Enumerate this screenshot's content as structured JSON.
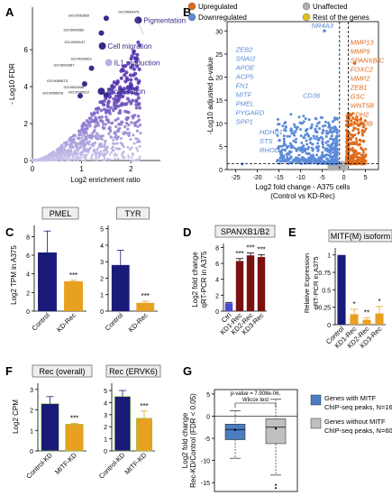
{
  "panels": {
    "A": "A",
    "B": "B",
    "C": "C",
    "D": "D",
    "E": "E",
    "F": "F",
    "G": "G"
  },
  "colors": {
    "navy": "#1a1a7a",
    "orange": "#e8a020",
    "darkred": "#7a1212",
    "blue_point": "#5b8bd9",
    "orange_point": "#e06a1a",
    "grey_point": "#b0b0b0",
    "lavender": "#b7b0e0",
    "purple_dark": "#3a2a8a",
    "g_blue": "#4a7ec0",
    "g_grey": "#c0c0c0"
  },
  "chart_data": [
    {
      "panel": "A",
      "type": "scatter",
      "xlabel": "Log2 enrichment ratio",
      "ylabel": "- Log10 FDR",
      "xticks": [
        "0",
        "1",
        "2"
      ],
      "yticks": [
        "0",
        "2",
        "4",
        "6"
      ],
      "xlim": [
        0,
        2.6
      ],
      "ylim": [
        0,
        8.3
      ],
      "labeled_points": [
        {
          "x": 2.15,
          "y": 7.6,
          "id": "GO:0043473",
          "term": "Pigmentation"
        },
        {
          "x": 1.5,
          "y": 7.7,
          "id": "GO:0031589",
          "term": ""
        },
        {
          "x": 1.4,
          "y": 6.9,
          "id": "GO:0042062",
          "term": ""
        },
        {
          "x": 1.42,
          "y": 6.2,
          "id": "GO:2000147",
          "term": "Cell migration"
        },
        {
          "x": 1.55,
          "y": 5.3,
          "id": "GO:0032623",
          "term": "IL1 production"
        },
        {
          "x": 1.2,
          "y": 5.0,
          "id": "GO:0001667",
          "term": ""
        },
        {
          "x": 1.06,
          "y": 4.15,
          "id": "GO:0050673",
          "term": ""
        },
        {
          "x": 1.4,
          "y": 3.75,
          "id": "GO:0001936",
          "term": "Proliferation"
        },
        {
          "x": 0.97,
          "y": 3.5,
          "id": "GO:0050678",
          "term": ""
        },
        {
          "x": 1.5,
          "y": 3.55,
          "id": "GO:0032612",
          "term": ""
        }
      ]
    },
    {
      "panel": "B",
      "type": "scatter",
      "xlabel": "Log2 fold change - A375 cells",
      "xlabel2": "(Control vs KD-Rec)",
      "ylabel": "-Log10 adjusted p-value",
      "xticks": [
        "-25",
        "-20",
        "-15",
        "-10",
        "-5",
        "0",
        "5"
      ],
      "yticks": [
        "0",
        "5",
        "10",
        "15",
        "20",
        "25",
        "30"
      ],
      "xlim": [
        -27,
        8
      ],
      "ylim": [
        0,
        32
      ],
      "legend": [
        {
          "label": "Upregulated",
          "color": "#e06a1a"
        },
        {
          "label": "Unaffected",
          "color": "#b0b0b0"
        },
        {
          "label": "Downregulated",
          "color": "#5b8bd9"
        },
        {
          "label": "Rest of the genes",
          "color": "#e0c020"
        }
      ],
      "down_genes_a": [
        "ZEB2",
        "SNAI2",
        "APOE",
        "ACP5",
        "FN1",
        "MITF",
        "PMEL",
        "PYGARD",
        "SPP1"
      ],
      "down_genes_b": [
        "HDHD1",
        "STS",
        "RHOD"
      ],
      "cd36": "CD36",
      "nr4a3": "NR4A3",
      "up_genes": [
        "MMP13",
        "MMP9",
        "SPANXB/C",
        "FOXC2",
        "MMP2",
        "ZEB1",
        "GSC",
        "WNT5B",
        "CDH2",
        "GSK3B"
      ]
    },
    {
      "panel": "C",
      "type": "bar",
      "ylabel": "Log2 TPM in A375",
      "subplots": [
        {
          "title": "PMEL",
          "categories": [
            "Control",
            "KD-Rec"
          ],
          "values": [
            6.3,
            3.2
          ],
          "errors": [
            2.3,
            0.1
          ],
          "yticks": [
            "0",
            "2",
            "4",
            "6",
            "8"
          ],
          "ymax": 9.2,
          "sig": "***"
        },
        {
          "title": "TYR",
          "categories": [
            "Control",
            "KD-Rec"
          ],
          "values": [
            2.8,
            0.5
          ],
          "errors": [
            0.9,
            0.1
          ],
          "yticks": [
            "0",
            "1",
            "2",
            "3",
            "4",
            "5"
          ],
          "ymax": 5.2,
          "sig": "***"
        }
      ]
    },
    {
      "panel": "D",
      "type": "bar",
      "title": "SPANXB1/B2",
      "ylabel": "Log2 fold change",
      "ylabel2": "qRT-PCR in A375",
      "categories": [
        "Ctrl",
        "KD1-Rec",
        "KD2-Rec",
        "KD3-Rec"
      ],
      "values": [
        1.0,
        6.3,
        7.0,
        6.8
      ],
      "errors": [
        0.1,
        0.3,
        0.3,
        0.3
      ],
      "sig": [
        "",
        "***",
        "***",
        "***"
      ],
      "yticks": [
        "0",
        "2",
        "4",
        "6",
        "8"
      ],
      "ymax": 8.5
    },
    {
      "panel": "E",
      "type": "bar",
      "title": "MITF(M) isoform",
      "ylabel": "Relative Expression",
      "ylabel2": "qRT-PCR in A375",
      "categories": [
        "Control",
        "KD1-Rec",
        "KD2-Rec",
        "KD3-Rec"
      ],
      "values": [
        1.0,
        0.15,
        0.07,
        0.16
      ],
      "errors": [
        0,
        0.07,
        0.03,
        0.1
      ],
      "sig": [
        "",
        "*",
        "**",
        "*"
      ],
      "yticks": [
        "0",
        "0.25",
        "0.5",
        "0.75",
        "1"
      ],
      "ymax": 1.1
    },
    {
      "panel": "F",
      "type": "bar",
      "ylabel": "Log2 CPM",
      "subplots": [
        {
          "title": "Rec (overall)",
          "categories": [
            "Control-KD",
            "MITF-KD"
          ],
          "values": [
            2.3,
            1.3
          ],
          "errors": [
            0.35,
            0.05
          ],
          "yticks": [
            "0",
            "1",
            "2",
            "3"
          ],
          "ymax": 3.3,
          "sig": "***"
        },
        {
          "title": "Rec (ERVK6)",
          "categories": [
            "Control-KD",
            "MITF-KD"
          ],
          "values": [
            4.5,
            2.7
          ],
          "errors": [
            0.5,
            0.6
          ],
          "yticks": [
            "0",
            "1",
            "2",
            "3",
            "4",
            "5"
          ],
          "ymax": 5.6,
          "sig": "***"
        }
      ]
    },
    {
      "panel": "G",
      "type": "box",
      "ylabel": "Log2 fold change",
      "ylabel2": "Rec-KD/Control (FDR < 0.05)",
      "annotation": "p-value = 7.908e-06,",
      "annotation2": "Wilcox test",
      "yticks": [
        "-15",
        "-10",
        "-5",
        "0",
        "5"
      ],
      "ylim": [
        -17,
        6
      ],
      "boxes": [
        {
          "name": "Genes with MITF ChIP-seq peaks, N=167",
          "q1": -5.3,
          "median": -3.0,
          "q3": -1.8,
          "mean": -3.1,
          "wlow": -9.5,
          "whigh": 1.2,
          "color": "#4a7ec0"
        },
        {
          "name": "Genes without MITF ChIP-seq peaks, N=606",
          "q1": -6.2,
          "median": -2.5,
          "q3": -0.6,
          "mean": -2.8,
          "wlow": -13.3,
          "whigh": 3.8,
          "color": "#c0c0c0"
        }
      ],
      "legend": [
        {
          "line1": "Genes with MITF",
          "line2": "ChIP-seq peaks, N=167",
          "color": "#4a7ec0"
        },
        {
          "line1": "Genes without MITF",
          "line2": "ChIP-seq peaks, N=606",
          "color": "#c0c0c0"
        }
      ]
    }
  ]
}
